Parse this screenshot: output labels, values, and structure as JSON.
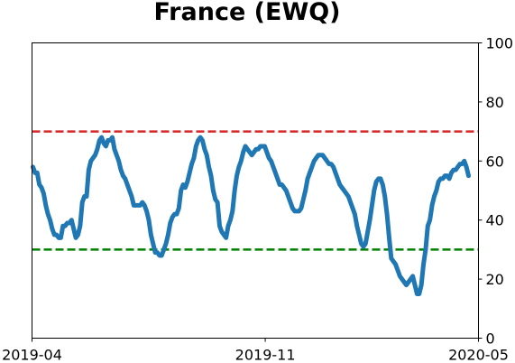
{
  "chart_data": {
    "type": "line",
    "title": "France (EWQ)",
    "xlabel": "",
    "ylabel": "",
    "x_tick_labels": [
      "2019-04",
      "2019-11",
      "2020-05"
    ],
    "x_range": [
      "2019-04-01",
      "2020-05-01"
    ],
    "y_ticks": [
      0,
      20,
      40,
      60,
      80,
      100
    ],
    "ylim": [
      0,
      100
    ],
    "y_axis_side": "right",
    "grid": false,
    "series_color": "#1f77b4",
    "reference_lines": [
      {
        "value": 70,
        "color": "#d62728",
        "style": "dashed"
      },
      {
        "value": 30,
        "color": "#008000",
        "style": "dashed"
      }
    ],
    "series": [
      {
        "values": [
          58,
          56,
          56,
          52,
          51,
          49,
          45,
          42,
          40,
          37,
          35,
          35,
          34,
          34,
          38,
          38,
          39,
          39,
          40,
          37,
          34,
          35,
          38,
          46,
          48,
          48,
          57,
          60,
          61,
          62,
          64,
          67,
          68,
          66,
          65,
          67,
          67,
          68,
          64,
          62,
          60,
          57,
          55,
          54,
          52,
          50,
          48,
          45,
          45,
          45,
          45,
          46,
          45,
          43,
          40,
          35,
          32,
          29,
          29,
          28,
          28,
          30,
          32,
          35,
          39,
          41,
          42,
          42,
          44,
          50,
          52,
          51,
          53,
          56,
          59,
          61,
          65,
          67,
          68,
          67,
          64,
          62,
          58,
          55,
          50,
          47,
          46,
          38,
          36,
          35,
          34,
          38,
          40,
          43,
          50,
          55,
          58,
          60,
          63,
          65,
          64,
          63,
          62,
          63,
          64,
          64,
          65,
          65,
          65,
          63,
          61,
          60,
          58,
          56,
          54,
          52,
          52,
          51,
          50,
          48,
          46,
          44,
          43,
          43,
          43,
          44,
          47,
          50,
          54,
          56,
          58,
          60,
          61,
          62,
          62,
          62,
          61,
          60,
          59,
          59,
          58,
          56,
          54,
          52,
          51,
          50,
          49,
          48,
          46,
          44,
          42,
          38,
          35,
          32,
          31,
          32,
          36,
          40,
          45,
          50,
          53,
          54,
          54,
          52,
          48,
          42,
          34,
          27,
          26,
          25,
          23,
          21,
          20,
          19,
          18,
          19,
          20,
          21,
          18,
          15,
          15,
          18,
          25,
          30,
          38,
          40,
          45,
          48,
          50,
          53,
          54,
          54,
          55,
          55,
          54,
          56,
          57,
          57,
          58,
          59,
          59,
          60,
          58,
          55
        ]
      }
    ]
  }
}
